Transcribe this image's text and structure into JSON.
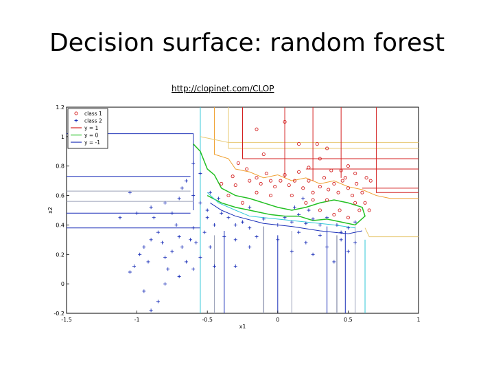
{
  "slide": {
    "title": "Decision surface: random forest",
    "link": "http://clopinet.com/CLOP"
  },
  "chart_data": {
    "type": "scatter",
    "title": "",
    "xlabel": "x1",
    "ylabel": "x2",
    "xlim": [
      -1.5,
      1
    ],
    "ylim": [
      -0.2,
      1.2
    ],
    "x_ticks": [
      "-1.5",
      "-1",
      "-0.5",
      "0",
      "0.5",
      "1"
    ],
    "y_ticks": [
      "-0.2",
      "0",
      "0.2",
      "0.4",
      "0.6",
      "0.8",
      "1",
      "1.2"
    ],
    "grid": false,
    "legend": {
      "position": "top-left",
      "entries": [
        {
          "label": "class 1",
          "marker": "circle",
          "color": "#d42020"
        },
        {
          "label": "class 2",
          "marker": "plus",
          "color": "#1a2fb8"
        },
        {
          "label": "y = 1",
          "marker": "line",
          "color": "#d42020"
        },
        {
          "label": "y = 0",
          "marker": "line",
          "color": "#22c022"
        },
        {
          "label": "y = -1",
          "marker": "line",
          "color": "#1a2fb8"
        }
      ]
    },
    "series": [
      {
        "name": "class 1",
        "color": "#d42020",
        "points": [
          [
            -0.28,
            0.82
          ],
          [
            -0.22,
            0.78
          ],
          [
            -0.2,
            0.7
          ],
          [
            -0.15,
            0.72
          ],
          [
            -0.12,
            0.68
          ],
          [
            -0.08,
            0.75
          ],
          [
            -0.05,
            0.7
          ],
          [
            -0.02,
            0.66
          ],
          [
            0.02,
            0.7
          ],
          [
            0.05,
            0.74
          ],
          [
            0.08,
            0.67
          ],
          [
            0.12,
            0.7
          ],
          [
            0.15,
            0.76
          ],
          [
            0.18,
            0.65
          ],
          [
            0.22,
            0.7
          ],
          [
            0.25,
            0.62
          ],
          [
            0.3,
            0.66
          ],
          [
            0.33,
            0.72
          ],
          [
            0.36,
            0.64
          ],
          [
            0.4,
            0.68
          ],
          [
            0.43,
            0.62
          ],
          [
            0.46,
            0.7
          ],
          [
            0.5,
            0.65
          ],
          [
            0.53,
            0.6
          ],
          [
            0.56,
            0.68
          ],
          [
            0.6,
            0.62
          ],
          [
            0.63,
            0.72
          ],
          [
            0.66,
            0.7
          ],
          [
            0.45,
            0.77
          ],
          [
            0.5,
            0.8
          ],
          [
            0.55,
            0.75
          ],
          [
            0.3,
            0.85
          ],
          [
            0.15,
            0.95
          ],
          [
            0.28,
            0.95
          ],
          [
            0.35,
            0.92
          ],
          [
            -0.1,
            0.88
          ],
          [
            -0.15,
            1.05
          ],
          [
            0.05,
            1.1
          ],
          [
            0.25,
            0.57
          ],
          [
            0.35,
            0.57
          ],
          [
            0.44,
            0.5
          ],
          [
            0.5,
            0.45
          ],
          [
            0.55,
            0.55
          ],
          [
            0.58,
            0.5
          ],
          [
            0.4,
            0.47
          ],
          [
            0.3,
            0.5
          ],
          [
            0.2,
            0.55
          ],
          [
            0.1,
            0.6
          ],
          [
            -0.05,
            0.6
          ],
          [
            -0.15,
            0.62
          ],
          [
            -0.3,
            0.67
          ],
          [
            -0.35,
            0.6
          ],
          [
            -0.25,
            0.55
          ],
          [
            0.62,
            0.55
          ],
          [
            0.65,
            0.5
          ],
          [
            0.48,
            0.72
          ],
          [
            0.38,
            0.77
          ],
          [
            0.22,
            0.79
          ],
          [
            -0.32,
            0.73
          ],
          [
            -0.4,
            0.68
          ]
        ]
      },
      {
        "name": "class 2",
        "color": "#1a2fb8",
        "points": [
          [
            -1.05,
            0.08
          ],
          [
            -1.02,
            0.12
          ],
          [
            -0.98,
            0.2
          ],
          [
            -0.95,
            0.25
          ],
          [
            -0.92,
            0.15
          ],
          [
            -0.9,
            0.3
          ],
          [
            -0.88,
            0.45
          ],
          [
            -0.85,
            0.35
          ],
          [
            -0.82,
            0.28
          ],
          [
            -0.8,
            0.18
          ],
          [
            -0.78,
            0.1
          ],
          [
            -0.75,
            0.22
          ],
          [
            -0.72,
            0.4
          ],
          [
            -0.7,
            0.32
          ],
          [
            -0.68,
            0.25
          ],
          [
            -0.65,
            0.15
          ],
          [
            -0.62,
            0.3
          ],
          [
            -0.6,
            0.38
          ],
          [
            -0.58,
            0.28
          ],
          [
            -0.55,
            0.18
          ],
          [
            -0.52,
            0.35
          ],
          [
            -0.5,
            0.45
          ],
          [
            -0.48,
            0.25
          ],
          [
            -0.45,
            0.12
          ],
          [
            -1.12,
            0.45
          ],
          [
            -1.0,
            0.48
          ],
          [
            -0.9,
            0.52
          ],
          [
            -0.8,
            0.55
          ],
          [
            -0.75,
            0.48
          ],
          [
            -0.7,
            0.58
          ],
          [
            -0.68,
            0.65
          ],
          [
            -0.65,
            0.7
          ],
          [
            -0.6,
            0.6
          ],
          [
            -0.55,
            0.55
          ],
          [
            -0.5,
            0.5
          ],
          [
            -0.4,
            0.48
          ],
          [
            -0.35,
            0.45
          ],
          [
            -0.3,
            0.4
          ],
          [
            -0.25,
            0.42
          ],
          [
            -0.2,
            0.38
          ],
          [
            -0.1,
            0.44
          ],
          [
            0.0,
            0.4
          ],
          [
            0.05,
            0.45
          ],
          [
            0.1,
            0.42
          ],
          [
            0.15,
            0.47
          ],
          [
            0.2,
            0.41
          ],
          [
            0.25,
            0.44
          ],
          [
            0.3,
            0.4
          ],
          [
            0.35,
            0.45
          ],
          [
            0.42,
            0.4
          ],
          [
            0.45,
            0.35
          ],
          [
            0.5,
            0.38
          ],
          [
            0.55,
            0.42
          ],
          [
            0.0,
            0.3
          ],
          [
            0.1,
            0.22
          ],
          [
            0.15,
            0.35
          ],
          [
            0.2,
            0.28
          ],
          [
            0.25,
            0.2
          ],
          [
            0.3,
            0.33
          ],
          [
            0.35,
            0.25
          ],
          [
            0.4,
            0.15
          ],
          [
            0.45,
            0.3
          ],
          [
            0.5,
            0.22
          ],
          [
            0.55,
            0.28
          ],
          [
            -0.3,
            0.3
          ],
          [
            -0.2,
            0.25
          ],
          [
            -0.15,
            0.32
          ],
          [
            -0.95,
            -0.05
          ],
          [
            -0.85,
            -0.12
          ],
          [
            -0.8,
            0.0
          ],
          [
            -0.9,
            -0.18
          ],
          [
            -0.7,
            0.05
          ],
          [
            -1.05,
            0.62
          ],
          [
            -0.6,
            0.82
          ],
          [
            -0.55,
            0.75
          ],
          [
            -0.48,
            0.62
          ],
          [
            -0.42,
            0.58
          ],
          [
            0.18,
            0.58
          ],
          [
            0.12,
            0.52
          ],
          [
            0.22,
            0.5
          ],
          [
            -0.2,
            0.52
          ],
          [
            -0.45,
            0.4
          ],
          [
            -0.38,
            0.32
          ],
          [
            -0.6,
            0.1
          ],
          [
            -0.3,
            0.12
          ]
        ]
      }
    ]
  }
}
